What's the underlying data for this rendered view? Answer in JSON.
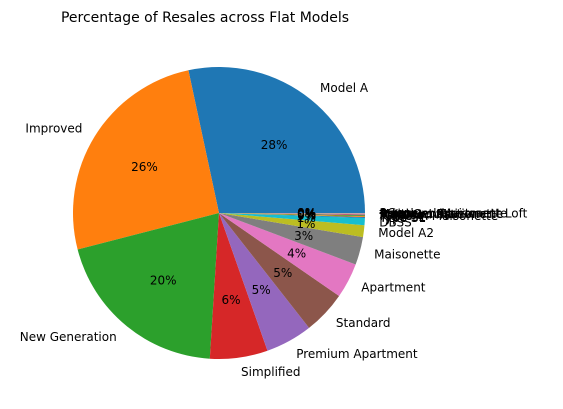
{
  "chart_data": {
    "type": "pie",
    "title": "Percentage of Resales across Flat Models",
    "slices": [
      {
        "label": "Model A",
        "value": 28.4,
        "pct_text": "28%",
        "color": "#1f77b4"
      },
      {
        "label": "Improved",
        "value": 25.7,
        "pct_text": "26%",
        "color": "#ff7f0e"
      },
      {
        "label": "New Generation",
        "value": 20.0,
        "pct_text": "20%",
        "color": "#2ca02c"
      },
      {
        "label": "Simplified",
        "value": 6.4,
        "pct_text": "6%",
        "color": "#d62728"
      },
      {
        "label": "Premium Apartment",
        "value": 5.2,
        "pct_text": "5%",
        "color": "#9467bd"
      },
      {
        "label": "Standard",
        "value": 4.8,
        "pct_text": "5%",
        "color": "#8c564b"
      },
      {
        "label": "Apartment",
        "value": 3.9,
        "pct_text": "4%",
        "color": "#e377c2"
      },
      {
        "label": "Maisonette",
        "value": 3.1,
        "pct_text": "3%",
        "color": "#7f7f7f"
      },
      {
        "label": "Model A2",
        "value": 1.3,
        "pct_text": "1%",
        "color": "#bcbd22"
      },
      {
        "label": "DBSS",
        "value": 0.8,
        "pct_text": "1%",
        "color": "#17becf"
      },
      {
        "label": "Type S1",
        "value": 0.1,
        "pct_text": "0%",
        "color": "#1f77b4"
      },
      {
        "label": "Type S2",
        "value": 0.1,
        "pct_text": "0%",
        "color": "#ff7f0e"
      },
      {
        "label": "Model A-Maisonette",
        "value": 0.1,
        "pct_text": "0%",
        "color": "#2ca02c"
      },
      {
        "label": "Terrace",
        "value": 0.05,
        "pct_text": "0%",
        "color": "#d62728"
      },
      {
        "label": "Adjoined flat",
        "value": 0.05,
        "pct_text": "0%",
        "color": "#9467bd"
      },
      {
        "label": "Multi Generation",
        "value": 0.05,
        "pct_text": "0%",
        "color": "#8c564b"
      },
      {
        "label": "Premium Maisonette",
        "value": 0.03,
        "pct_text": "0%",
        "color": "#e377c2"
      },
      {
        "label": "Improved-Maisonette",
        "value": 0.02,
        "pct_text": "0%",
        "color": "#7f7f7f"
      },
      {
        "label": "Premium Apartment Loft",
        "value": 0.02,
        "pct_text": "0%",
        "color": "#bcbd22"
      },
      {
        "label": "2-room",
        "value": 0.01,
        "pct_text": "0%",
        "color": "#17becf"
      },
      {
        "label": "3Gen",
        "value": 0.01,
        "pct_text": "0%",
        "color": "#1f77b4"
      }
    ]
  }
}
